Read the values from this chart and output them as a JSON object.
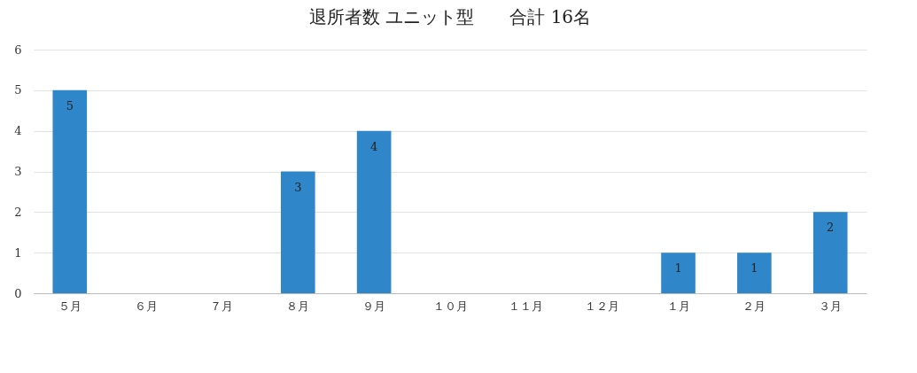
{
  "chart_data": {
    "type": "bar",
    "title": "退所者数  ユニット型　　合計  16名",
    "categories": [
      "５月",
      "６月",
      "７月",
      "８月",
      "９月",
      "１０月",
      "１１月",
      "１２月",
      "１月",
      "２月",
      "３月"
    ],
    "values": [
      5,
      0,
      0,
      3,
      4,
      0,
      0,
      0,
      1,
      1,
      2
    ],
    "value_labels": [
      "5",
      null,
      null,
      "3",
      "4",
      null,
      null,
      null,
      "1",
      "1",
      "2"
    ],
    "color": "#2f86c9",
    "ylim": [
      0,
      6
    ],
    "yticks": [
      0,
      1,
      2,
      3,
      4,
      5,
      6
    ],
    "grid": "y"
  }
}
